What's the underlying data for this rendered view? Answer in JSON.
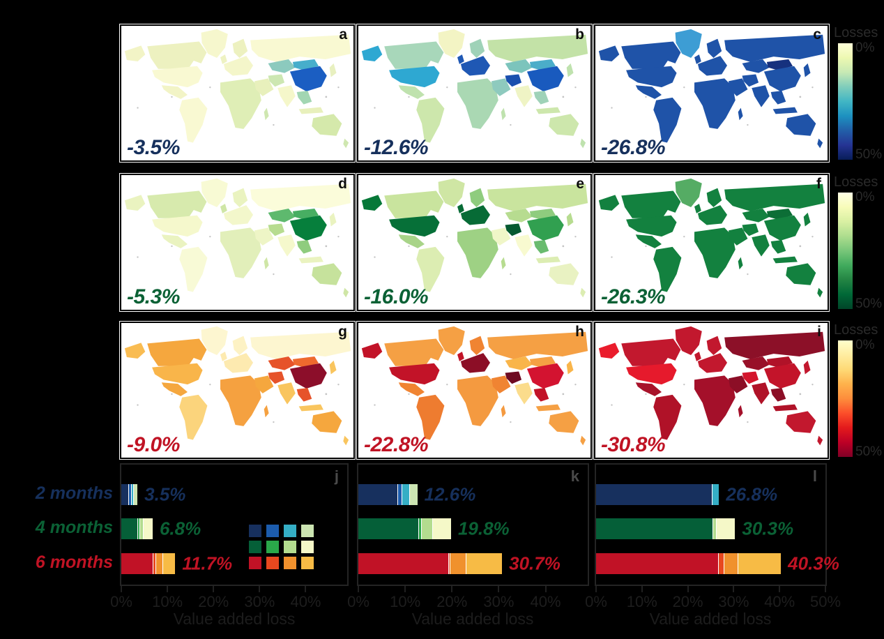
{
  "colorbar": {
    "title": "Losses",
    "min_label": "0%",
    "max_label": "50%"
  },
  "chart_data": {
    "type": [
      "choropleth",
      "bar"
    ],
    "maps": {
      "colorbar": {
        "title": "Losses",
        "range": [
          "0%",
          "50%"
        ]
      },
      "rows": [
        {
          "duration": "2 months",
          "colormap": "YlGnBu",
          "label_color": "#16305c",
          "gradient": [
            "#ffffd9",
            "#edf8b1",
            "#c7e9b4",
            "#7fcdbb",
            "#41b6c4",
            "#1d91c0",
            "#225ea8",
            "#253494",
            "#081d58"
          ],
          "panels": [
            {
              "letter": "a",
              "global_loss": "-3.5%"
            },
            {
              "letter": "b",
              "global_loss": "-12.6%"
            },
            {
              "letter": "c",
              "global_loss": "-26.8%"
            }
          ]
        },
        {
          "duration": "4 months",
          "colormap": "YlGn",
          "label_color": "#0b6135",
          "gradient": [
            "#ffffe5",
            "#f7fcb9",
            "#d9f0a3",
            "#addd8e",
            "#78c679",
            "#41ab5d",
            "#238443",
            "#006837",
            "#004529"
          ],
          "panels": [
            {
              "letter": "d",
              "global_loss": "-5.3%"
            },
            {
              "letter": "e",
              "global_loss": "-16.0%"
            },
            {
              "letter": "f",
              "global_loss": "-26.3%"
            }
          ]
        },
        {
          "duration": "6 months",
          "colormap": "YlOrRd",
          "label_color": "#c01324",
          "gradient": [
            "#ffffcc",
            "#ffeda0",
            "#fed976",
            "#feb24c",
            "#fd8d3c",
            "#fc4e2a",
            "#e31a1c",
            "#bd0026",
            "#800026"
          ],
          "panels": [
            {
              "letter": "g",
              "global_loss": "-9.0%"
            },
            {
              "letter": "h",
              "global_loss": "-22.8%"
            },
            {
              "letter": "i",
              "global_loss": "-30.8%"
            }
          ]
        }
      ]
    },
    "bars": {
      "xlabel": "Value added loss",
      "categories": [
        {
          "label": "2 months",
          "color": "#16305c"
        },
        {
          "label": "4 months",
          "color": "#0b6135"
        },
        {
          "label": "6 months",
          "color": "#c01324"
        }
      ],
      "segment_colors": [
        [
          "#17305e",
          "#1c5cad",
          "#35aec5",
          "#cce5b2"
        ],
        [
          "#055f38",
          "#2aa84a",
          "#b3dc8f",
          "#f5f8c8"
        ],
        [
          "#c11226",
          "#e8481f",
          "#f0912d",
          "#f7bb45"
        ]
      ],
      "panels": [
        {
          "letter": "j",
          "x_max": 49,
          "ticks": [
            {
              "v": 0,
              "label": "0%"
            },
            {
              "v": 10,
              "label": "10%"
            },
            {
              "v": 20,
              "label": "20%"
            },
            {
              "v": 30,
              "label": "30%"
            },
            {
              "v": 40,
              "label": "40%"
            }
          ],
          "bars": [
            {
              "category": "2 months",
              "total": 3.5,
              "total_label": "3.5%",
              "segments": [
                1.5,
                0.6,
                0.4,
                1.0
              ]
            },
            {
              "category": "4 months",
              "total": 6.8,
              "total_label": "6.8%",
              "segments": [
                3.5,
                0.5,
                0.7,
                2.1
              ]
            },
            {
              "category": "6 months",
              "total": 11.7,
              "total_label": "11.7%",
              "segments": [
                6.8,
                0.6,
                1.6,
                2.7
              ]
            }
          ]
        },
        {
          "letter": "k",
          "x_max": 49,
          "ticks": [
            {
              "v": 0,
              "label": "0%"
            },
            {
              "v": 10,
              "label": "10%"
            },
            {
              "v": 20,
              "label": "20%"
            },
            {
              "v": 30,
              "label": "30%"
            },
            {
              "v": 40,
              "label": "40%"
            }
          ],
          "bars": [
            {
              "category": "2 months",
              "total": 12.6,
              "total_label": "12.6%",
              "segments": [
                8.4,
                0.9,
                1.6,
                1.7
              ]
            },
            {
              "category": "4 months",
              "total": 19.8,
              "total_label": "19.8%",
              "segments": [
                12.8,
                0.6,
                2.4,
                4.0
              ]
            },
            {
              "category": "6 months",
              "total": 30.7,
              "total_label": "30.7%",
              "segments": [
                19.2,
                0.3,
                3.4,
                7.8
              ]
            }
          ]
        },
        {
          "letter": "l",
          "x_max": 50,
          "ticks": [
            {
              "v": 0,
              "label": "0%"
            },
            {
              "v": 10,
              "label": "10%"
            },
            {
              "v": 20,
              "label": "20%"
            },
            {
              "v": 30,
              "label": "30%"
            },
            {
              "v": 40,
              "label": "40%"
            },
            {
              "v": 50,
              "label": "50%"
            }
          ],
          "bars": [
            {
              "category": "2 months",
              "total": 26.8,
              "total_label": "26.8%",
              "segments": [
                25.2,
                0.0,
                1.6,
                0.0
              ]
            },
            {
              "category": "4 months",
              "total": 30.3,
              "total_label": "30.3%",
              "segments": [
                25.4,
                0.0,
                0.8,
                4.1
              ]
            },
            {
              "category": "6 months",
              "total": 40.3,
              "total_label": "40.3%",
              "segments": [
                26.6,
                1.2,
                3.0,
                9.5
              ]
            }
          ]
        }
      ]
    }
  },
  "map_region_fills": [
    {
      "border": "#b2b2b2",
      "fills": {
        "gl": "#f6f7cd",
        "ak": "#f2f4c6",
        "ca": "#edf1c0",
        "us": "#f9f9d2",
        "mx": "#f2f4c6",
        "sa": "#f9f9d2",
        "uk": "#eef2c2",
        "eu": "#f4f6ca",
        "sc": "#edf1c0",
        "ru": "#f9f9d2",
        "cs": "#8ccabe",
        "mn": "#47aecb",
        "cn": "#1b5ec2",
        "in": "#f5f7ca",
        "me": "#e8f0bc",
        "ir": "#cde7b2",
        "af": "#dfeeb6",
        "se": "#a2d6b2",
        "id": "#e8f0bc",
        "jp": "#e8f0c0",
        "au": "#d5e9ab",
        "nz": "#cfe7b0",
        "mg": "#cfe7b0"
      }
    },
    {
      "border": "#b2b2b2",
      "fills": {
        "gl": "#f3f4c4",
        "ak": "#2ea8d2",
        "ca": "#a8d7ba",
        "us": "#2ea8d2",
        "mx": "#bfe2ae",
        "sa": "#cde7ac",
        "uk": "#1f58b4",
        "eu": "#1f58b4",
        "sc": "#9fd2b8",
        "ru": "#c3e2a7",
        "cs": "#7cc4bc",
        "mn": "#4badc9",
        "cn": "#195abe",
        "in": "#eff4c5",
        "me": "#8ecabe",
        "ir": "#1a50ae",
        "af": "#aad8b3",
        "se": "#9fd2b8",
        "id": "#cde7ac",
        "jp": "#bfe2ae",
        "au": "#cde7ac",
        "nz": "#bfe2ae",
        "mg": "#bfe2ae"
      }
    },
    {
      "border": "#ffffff",
      "fills": {
        "gl": "#3d9dd4",
        "ak": "#1f53a8",
        "ca": "#1f53a8",
        "us": "#1f53a8",
        "mx": "#1f53a8",
        "sa": "#1f53a8",
        "uk": "#1f53a8",
        "eu": "#1f53a8",
        "sc": "#1f53a8",
        "ru": "#1f53a8",
        "cs": "#1f53a8",
        "mn": "#16317e",
        "cn": "#1f53a8",
        "in": "#1f53a8",
        "me": "#1f53a8",
        "ir": "#1f53a8",
        "af": "#1f53a8",
        "se": "#1f53a8",
        "id": "#1f53a8",
        "jp": "#1f53a8",
        "au": "#1f53a8",
        "nz": "#1f53a8",
        "mg": "#1f53a8"
      }
    },
    {
      "border": "#b2b2b2",
      "fills": {
        "gl": "#f8fad4",
        "ak": "#eaf3c0",
        "ca": "#d7eaad",
        "us": "#f5f8cc",
        "mx": "#eaf3c0",
        "sa": "#f8fad6",
        "uk": "#cfe6a6",
        "eu": "#f3f7cb",
        "sc": "#eaf3c0",
        "ru": "#fbfcda",
        "cs": "#5eb96e",
        "mn": "#47ae62",
        "cn": "#067f3c",
        "in": "#f5f8cc",
        "me": "#eef5c6",
        "ir": "#b7dc90",
        "af": "#e2efba",
        "se": "#8fcc7e",
        "id": "#eaf3c0",
        "jp": "#eaf3c0",
        "au": "#c6e29c",
        "nz": "#cfe6a6",
        "mg": "#cfe6a6"
      }
    },
    {
      "border": "#b2b2b2",
      "fills": {
        "gl": "#cfe6a4",
        "ak": "#067838",
        "ca": "#c9e49e",
        "us": "#067038",
        "mx": "#a8d488",
        "sa": "#dcedb2",
        "uk": "#076b36",
        "eu": "#076b36",
        "sc": "#8fcc7e",
        "ru": "#c9e49e",
        "cs": "#b7dc90",
        "mn": "#8fcc7e",
        "cn": "#31a050",
        "in": "#f8fad0",
        "me": "#f0f6c8",
        "ir": "#055930",
        "af": "#9ed184",
        "se": "#69bb6e",
        "id": "#dcedb2",
        "jp": "#b7dc90",
        "au": "#e9f2c2",
        "nz": "#dcedb2",
        "mg": "#b7dc90"
      }
    },
    {
      "border": "#ffffff",
      "fills": {
        "gl": "#55ac64",
        "ak": "#13813f",
        "ca": "#13813f",
        "us": "#13813f",
        "mx": "#13813f",
        "sa": "#13813f",
        "uk": "#13813f",
        "eu": "#13813f",
        "sc": "#13813f",
        "ru": "#13813f",
        "cs": "#13813f",
        "mn": "#0c6e36",
        "cn": "#13813f",
        "in": "#13813f",
        "me": "#13813f",
        "ir": "#13813f",
        "af": "#13813f",
        "se": "#13813f",
        "id": "#13813f",
        "jp": "#13813f",
        "au": "#13813f",
        "nz": "#13813f",
        "mg": "#13813f"
      }
    },
    {
      "border": "#b2b2b2",
      "fills": {
        "gl": "#fdf6d0",
        "ak": "#f9bc52",
        "ca": "#f5a73e",
        "us": "#f9b54a",
        "mx": "#f5a73e",
        "sa": "#fbd47c",
        "uk": "#fdeab0",
        "eu": "#fdeab0",
        "sc": "#fdf2c4",
        "ru": "#fdf6d0",
        "cs": "#e6532a",
        "mn": "#ee6a2e",
        "cn": "#8c0e2a",
        "in": "#f9c55e",
        "me": "#f5a73e",
        "ir": "#e6532a",
        "af": "#f5a140",
        "se": "#e6532a",
        "id": "#f9c55e",
        "jp": "#f9c55e",
        "au": "#f5a73e",
        "nz": "#f9c55e",
        "mg": "#f5a140"
      }
    },
    {
      "border": "#b2b2b2",
      "fills": {
        "gl": "#f5a044",
        "ak": "#c21328",
        "ca": "#f5a044",
        "us": "#c21328",
        "mx": "#f08432",
        "sa": "#ee7c30",
        "uk": "#c21328",
        "eu": "#8c0e26",
        "sc": "#f08432",
        "ru": "#f5a044",
        "cs": "#f9b54a",
        "mn": "#f5a044",
        "cn": "#d31330",
        "in": "#fbdc8c",
        "me": "#f08432",
        "ir": "#6e0a22",
        "af": "#f49a40",
        "se": "#c21328",
        "id": "#f5a044",
        "jp": "#f9b54a",
        "au": "#f5a044",
        "nz": "#f5a044",
        "mg": "#f49a40"
      }
    },
    {
      "border": "#ffffff",
      "fills": {
        "gl": "#c2182e",
        "ak": "#ea1c2c",
        "ca": "#c2182e",
        "us": "#e61a2c",
        "mx": "#a8122a",
        "sa": "#b01228",
        "uk": "#c2182e",
        "eu": "#c2182e",
        "sc": "#c2182e",
        "ru": "#8c1028",
        "cs": "#981028",
        "mn": "#b01228",
        "cn": "#c3142a",
        "in": "#b01228",
        "me": "#8c0e26",
        "ir": "#d4152c",
        "af": "#a4102a",
        "se": "#8c0e26",
        "id": "#b01228",
        "jp": "#c2182e",
        "au": "#c2182e",
        "nz": "#c2182e",
        "mg": "#a4102a"
      }
    }
  ]
}
